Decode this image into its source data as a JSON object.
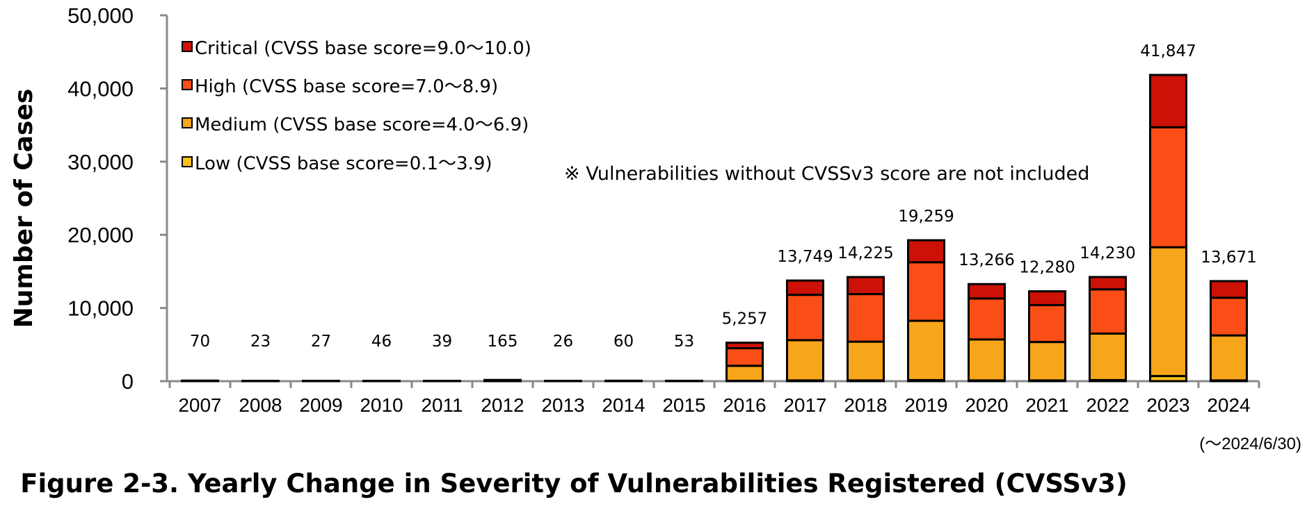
{
  "chart_data": {
    "type": "bar",
    "stacked": true,
    "title": "Figure 2-3. Yearly Change in Severity of Vulnerabilities Registered (CVSSv3)",
    "ylabel": "Number of Cases",
    "xlabel": "",
    "ylim": [
      0,
      50000
    ],
    "yticks": [
      0,
      10000,
      20000,
      30000,
      40000,
      50000
    ],
    "ytick_labels": [
      "0",
      "10,000",
      "20,000",
      "30,000",
      "40,000",
      "50,000"
    ],
    "categories": [
      "2007",
      "2008",
      "2009",
      "2010",
      "2011",
      "2012",
      "2013",
      "2014",
      "2015",
      "2016",
      "2017",
      "2018",
      "2019",
      "2020",
      "2021",
      "2022",
      "2023",
      "2024"
    ],
    "totals": [
      70,
      23,
      27,
      46,
      39,
      165,
      26,
      60,
      53,
      5257,
      13749,
      14225,
      19259,
      13266,
      12280,
      14230,
      41847,
      13671
    ],
    "total_labels": [
      "70",
      "23",
      "27",
      "46",
      "39",
      "165",
      "26",
      "60",
      "53",
      "5,257",
      "13,749",
      "14,225",
      "19,259",
      "13,266",
      "12,280",
      "14,230",
      "41,847",
      "13,671"
    ],
    "series": [
      {
        "name": "Low (CVSS base score=0.1～3.9)",
        "color": "#F9C11D",
        "values": [
          0,
          0,
          0,
          0,
          0,
          0,
          0,
          0,
          0,
          50,
          100,
          100,
          150,
          100,
          100,
          150,
          700,
          100
        ]
      },
      {
        "name": "Medium (CVSS base score=4.0～6.9)",
        "color": "#F7A51A",
        "values": [
          30,
          10,
          12,
          20,
          17,
          70,
          12,
          25,
          23,
          2050,
          5500,
          5300,
          8100,
          5600,
          5250,
          6350,
          17600,
          6150
        ]
      },
      {
        "name": "High (CVSS base score=7.0～8.9)",
        "color": "#FA4E16",
        "values": [
          30,
          10,
          11,
          20,
          17,
          75,
          10,
          27,
          23,
          2400,
          6200,
          6500,
          8000,
          5600,
          5050,
          6050,
          16400,
          5150
        ]
      },
      {
        "name": "Critical (CVSS base score=9.0～10.0)",
        "color": "#CC1106",
        "values": [
          10,
          3,
          4,
          6,
          5,
          20,
          4,
          8,
          7,
          757,
          1949,
          2325,
          3009,
          1966,
          1880,
          1680,
          7147,
          2271
        ]
      }
    ],
    "legend_order": [
      3,
      2,
      1,
      0
    ],
    "legend_position": "top-left",
    "annotations": {
      "note": "※ Vulnerabilities without CVSSv3 score are not included",
      "date_range": "(～2024/6/30)"
    }
  }
}
